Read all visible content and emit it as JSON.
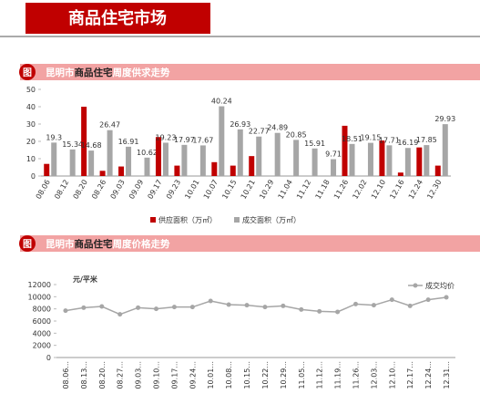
{
  "header": {
    "title": "商品住宅市场"
  },
  "chart_data": [
    {
      "type": "bar",
      "badge": "图",
      "title": [
        "昆明市",
        "商品住宅",
        "周度供求走势"
      ],
      "categories": [
        "08.06",
        "08.12",
        "08.20",
        "08.26",
        "09.03",
        "09.09",
        "09.17",
        "09.23",
        "10.01",
        "10.07",
        "10.15",
        "10.21",
        "10.29",
        "11.04",
        "11.12",
        "11.18",
        "11.26",
        "12.02",
        "12.10",
        "12.16",
        "12.24",
        "12.30"
      ],
      "series": [
        {
          "name": "供应面积（万㎡）",
          "color": "#c00000",
          "values": [
            7,
            0,
            40,
            3,
            5.5,
            0,
            22.5,
            6,
            0,
            8,
            6,
            11.5,
            0,
            0,
            0,
            0,
            29,
            0,
            20.5,
            2,
            16.5,
            6
          ]
        },
        {
          "name": "成交面积（万㎡）",
          "color": "#a6a6a6",
          "values": [
            19.3,
            15.34,
            14.68,
            26.47,
            16.91,
            10.62,
            19.23,
            17.97,
            17.67,
            40.24,
            26.93,
            22.77,
            24.89,
            20.85,
            15.91,
            9.71,
            18.51,
            19.15,
            17.71,
            16.19,
            17.85,
            29.93
          ]
        }
      ],
      "ylim": [
        0,
        50
      ],
      "yticks": [
        0,
        10,
        20,
        30,
        40,
        50
      ]
    },
    {
      "type": "line",
      "badge": "图",
      "title": [
        "昆明市",
        "商品住宅",
        "周度价格走势"
      ],
      "y_label": "元/平米",
      "categories": [
        "08.06...",
        "08.13...",
        "08.20...",
        "08.27...",
        "09.03...",
        "09.10...",
        "09.17...",
        "09.24...",
        "10.01...",
        "10.08...",
        "10.15...",
        "10.22...",
        "10.29...",
        "11.05...",
        "11.12...",
        "11.19...",
        "11.26...",
        "12.03...",
        "12.10...",
        "12.17...",
        "12.24...",
        "12.31..."
      ],
      "series": [
        {
          "name": "成交均价",
          "color": "#a6a6a6",
          "values": [
            7700,
            8200,
            8400,
            7100,
            8200,
            8000,
            8300,
            8300,
            9300,
            8700,
            8600,
            8300,
            8500,
            7900,
            7600,
            7500,
            8800,
            8600,
            9500,
            8500,
            9500,
            9900
          ]
        }
      ],
      "ylim": [
        0,
        12000
      ],
      "yticks": [
        0,
        2000,
        4000,
        6000,
        8000,
        10000,
        12000
      ]
    }
  ]
}
